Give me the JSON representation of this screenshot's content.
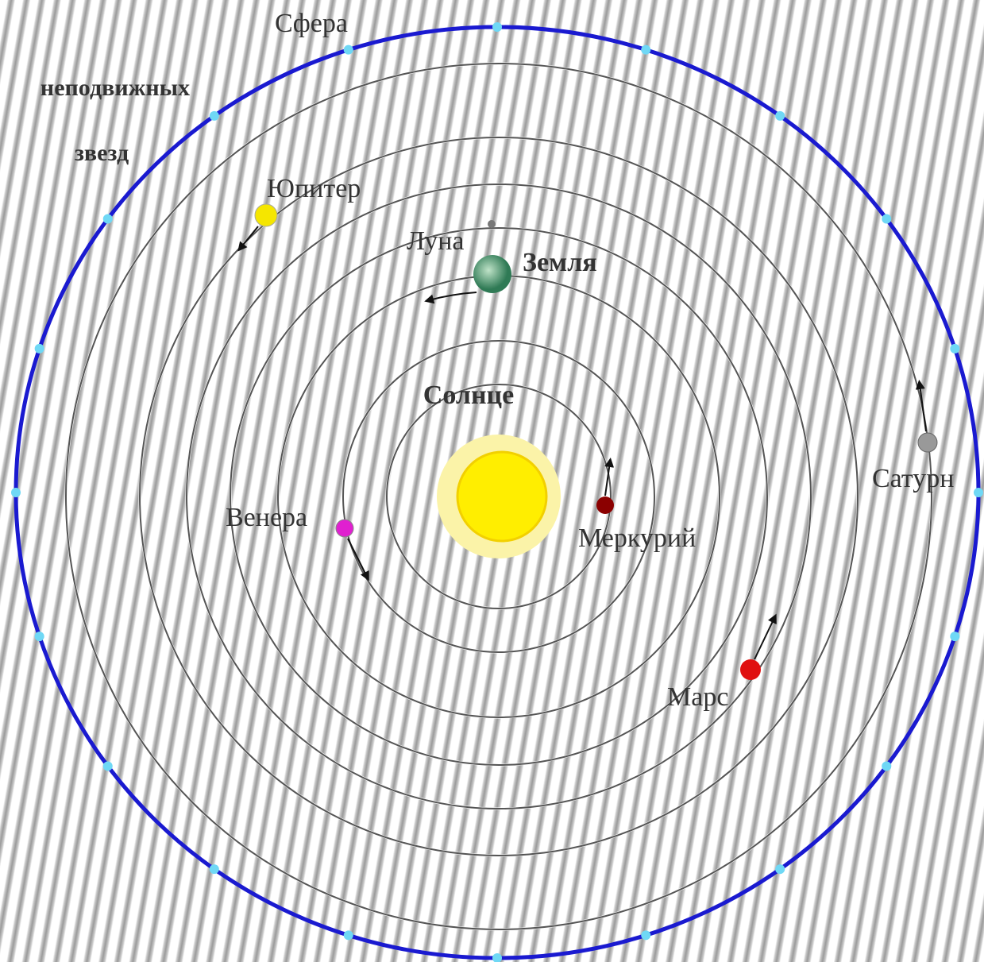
{
  "diagram": {
    "sphere_label": [
      "Сфера",
      "неподвижных",
      "звезд"
    ],
    "bodies": [
      {
        "label": "Солнце"
      },
      {
        "label": "Меркурий"
      },
      {
        "label": "Венера"
      },
      {
        "label": "Земля"
      },
      {
        "label": "Луна"
      },
      {
        "label": "Марс"
      },
      {
        "label": "Юпитер"
      },
      {
        "label": "Сатурн"
      }
    ]
  }
}
